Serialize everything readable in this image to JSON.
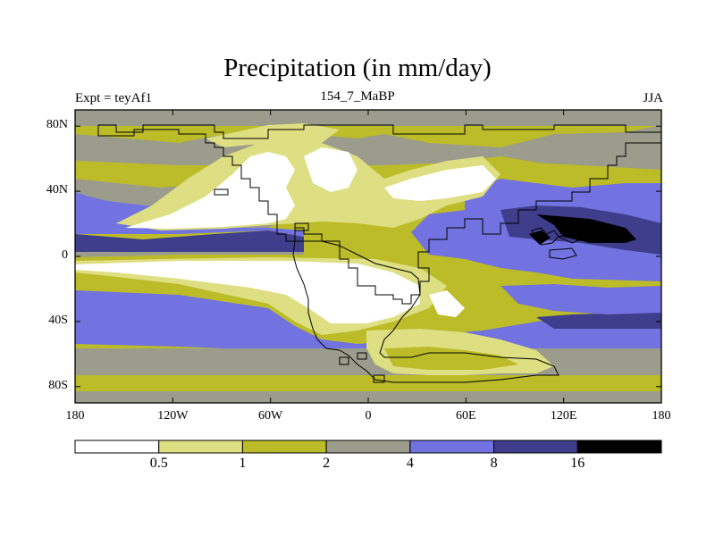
{
  "figure": {
    "title": "Precipitation (in mm/day)",
    "left_label": "Expt = teyAf1",
    "center_label": "154_7_MaBP",
    "right_label": "JJA"
  },
  "axes": {
    "lat_ticks": [
      "80N",
      "40N",
      "0",
      "40S",
      "80S"
    ],
    "lon_ticks": [
      "180",
      "120W",
      "60W",
      "0",
      "60E",
      "120E",
      "180"
    ],
    "lat_values": [
      80,
      40,
      0,
      -40,
      -80
    ],
    "lon_values": [
      -180,
      -120,
      -60,
      0,
      60,
      120,
      180
    ],
    "lat_range": [
      -90,
      90
    ],
    "lon_range": [
      -180,
      180
    ]
  },
  "colorbar": {
    "labels": [
      "0.5",
      "1",
      "2",
      "4",
      "8",
      "16"
    ],
    "levels": [
      0.5,
      1,
      2,
      4,
      8,
      16
    ],
    "colors": [
      "#ffffff",
      "#dede82",
      "#bcbc28",
      "#9c9c8c",
      "#7272e0",
      "#3e3e8c",
      "#000000"
    ]
  },
  "map_colors": {
    "white": "#ffffff",
    "light_yellow": "#dede82",
    "olive": "#bcbc28",
    "gray": "#9c9c8c",
    "blue": "#7272e0",
    "dark_blue": "#3e3e8c",
    "black": "#000000"
  }
}
